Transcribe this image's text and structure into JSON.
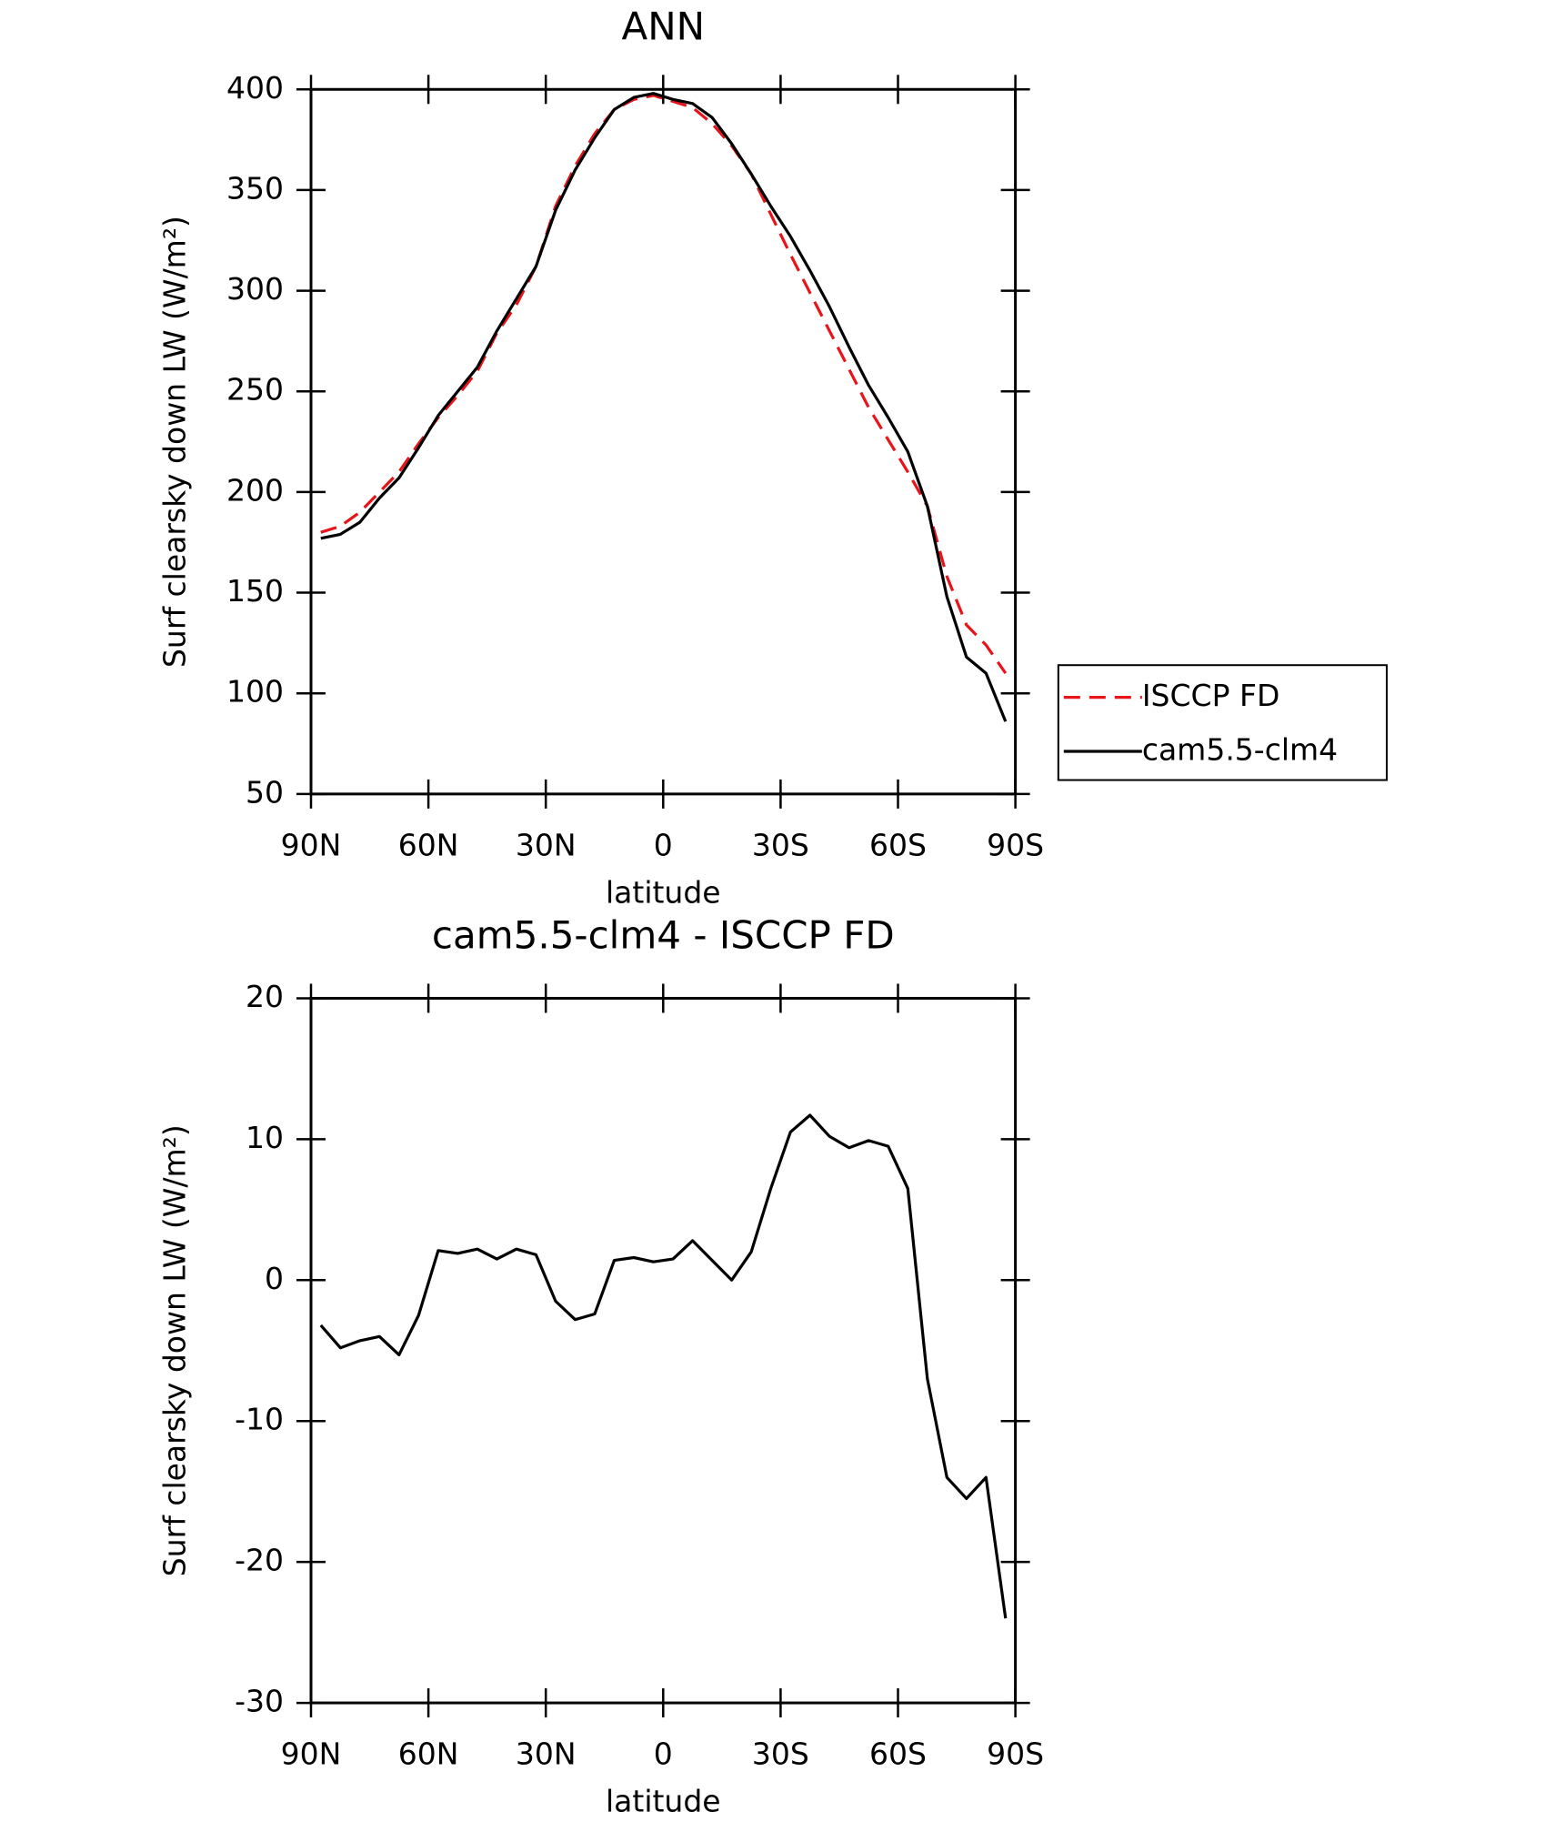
{
  "chart_data": [
    {
      "type": "line",
      "title": "ANN",
      "xlabel": "latitude",
      "ylabel": "Surf clearsky down LW (W/m²)",
      "x": [
        87.5,
        82.5,
        77.5,
        72.5,
        67.5,
        62.5,
        57.5,
        52.5,
        47.5,
        42.5,
        37.5,
        32.5,
        27.5,
        22.5,
        17.5,
        12.5,
        7.5,
        2.5,
        -2.5,
        -7.5,
        -12.5,
        -17.5,
        -22.5,
        -27.5,
        -32.5,
        -37.5,
        -42.5,
        -47.5,
        -52.5,
        -57.5,
        -62.5,
        -67.5,
        -72.5,
        -77.5,
        -82.5,
        -87.5
      ],
      "series": [
        {
          "name": "ISCCP FD",
          "color": "#e8141a",
          "linestyle": "dashed",
          "values": [
            180,
            183,
            190,
            200,
            210,
            224,
            237,
            248,
            260,
            279,
            293,
            312,
            342,
            362,
            378,
            390,
            395,
            397,
            394,
            391,
            383,
            372,
            358,
            338,
            318,
            299,
            280,
            261,
            242,
            226,
            210,
            193,
            158,
            134,
            124,
            110
          ]
        },
        {
          "name": "cam5.5-clm4",
          "color": "#000000",
          "linestyle": "solid",
          "values": [
            177,
            179,
            185,
            197,
            207,
            222,
            238,
            250,
            262,
            280,
            296,
            312,
            340,
            360,
            376,
            390,
            396,
            398,
            395,
            393,
            386,
            373,
            358,
            342,
            327,
            310,
            292,
            272,
            253,
            237,
            220,
            193,
            148,
            118,
            110,
            86
          ]
        }
      ],
      "xlim": [
        90,
        -90
      ],
      "xticks": [
        {
          "value": 90,
          "label": "90N"
        },
        {
          "value": 60,
          "label": "60N"
        },
        {
          "value": 30,
          "label": "30N"
        },
        0,
        {
          "value": -30,
          "label": "30S"
        },
        {
          "value": -60,
          "label": "60S"
        },
        {
          "value": -90,
          "label": "90S"
        }
      ],
      "ylim": [
        50,
        400
      ],
      "yticks": [
        50,
        100,
        150,
        200,
        250,
        300,
        350,
        400
      ],
      "legend": "right"
    },
    {
      "type": "line",
      "title": "cam5.5-clm4 - ISCCP FD",
      "xlabel": "latitude",
      "ylabel": "Surf clearsky down LW (W/m²)",
      "x": [
        87.5,
        82.5,
        77.5,
        72.5,
        67.5,
        62.5,
        57.5,
        52.5,
        47.5,
        42.5,
        37.5,
        32.5,
        27.5,
        22.5,
        17.5,
        12.5,
        7.5,
        2.5,
        -2.5,
        -7.5,
        -12.5,
        -17.5,
        -22.5,
        -27.5,
        -32.5,
        -37.5,
        -42.5,
        -47.5,
        -52.5,
        -57.5,
        -62.5,
        -67.5,
        -72.5,
        -77.5,
        -82.5,
        -87.5
      ],
      "series": [
        {
          "color": "#000000",
          "linestyle": "solid",
          "values": [
            -3.2,
            -4.8,
            -4.3,
            -4.0,
            -5.3,
            -2.5,
            2.1,
            1.9,
            2.2,
            1.5,
            2.2,
            1.8,
            -1.5,
            -2.8,
            -2.4,
            1.4,
            1.6,
            1.3,
            1.5,
            2.8,
            1.4,
            0.0,
            2.0,
            6.5,
            10.5,
            11.7,
            10.2,
            9.4,
            9.9,
            9.5,
            6.5,
            -7.0,
            -14.0,
            -15.5,
            -14.0,
            -24.0
          ]
        }
      ],
      "xlim": [
        90,
        -90
      ],
      "xticks": [
        {
          "value": 90,
          "label": "90N"
        },
        {
          "value": 60,
          "label": "60N"
        },
        {
          "value": 30,
          "label": "30N"
        },
        0,
        {
          "value": -30,
          "label": "30S"
        },
        {
          "value": -60,
          "label": "60S"
        },
        {
          "value": -90,
          "label": "90S"
        }
      ],
      "ylim": [
        -30,
        20
      ],
      "yticks": [
        -30,
        -20,
        -10,
        0,
        10,
        20
      ]
    }
  ]
}
